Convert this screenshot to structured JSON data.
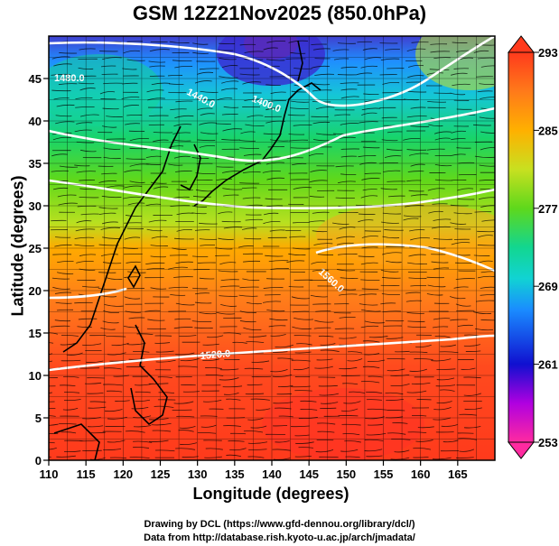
{
  "title": "GSM 12Z21Nov2025 (850.0hPa)",
  "xlabel": "Longitude (degrees)",
  "ylabel": "Latitude  (degrees)",
  "credits": [
    "Drawing by DCL (https://www.gfd-dennou.org/library/dcl/)",
    "Data from http://database.rish.kyoto-u.ac.jp/arch/jmadata/"
  ],
  "map": {
    "lon_ticks": [
      110,
      115,
      120,
      125,
      130,
      135,
      140,
      145,
      150,
      155,
      160,
      165
    ],
    "lat_ticks": [
      0,
      5,
      10,
      15,
      20,
      25,
      30,
      35,
      40,
      45
    ],
    "lon_range": [
      110,
      170
    ],
    "lat_range": [
      0,
      50
    ],
    "grid": true
  },
  "colorbar": {
    "labels": [
      "293",
      "285",
      "277",
      "269",
      "261",
      "253"
    ],
    "min": 253,
    "max": 293,
    "colors": [
      "#ff2aa0",
      "#b000e0",
      "#1010d0",
      "#1a8cff",
      "#11d3d3",
      "#12d690",
      "#5ed81c",
      "#c8e020",
      "#ffb000",
      "#ff7a1a",
      "#ff4a1e"
    ]
  },
  "contours": [
    {
      "label": "1440.0"
    },
    {
      "label": "1400.0"
    },
    {
      "label": "1480.0"
    },
    {
      "label": "1560.0"
    },
    {
      "label": "1520.0"
    }
  ]
}
